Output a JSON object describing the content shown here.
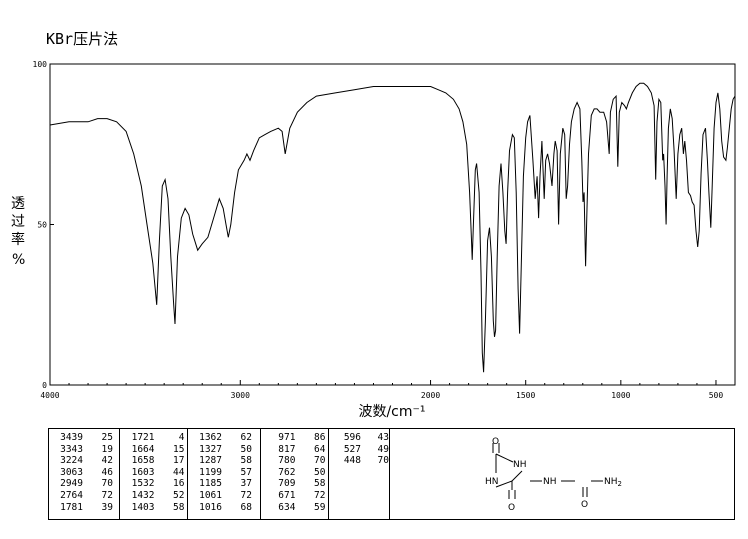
{
  "header": {
    "title": "KBr压片法"
  },
  "chart_data": {
    "type": "line",
    "title": "KBr压片法",
    "xlabel": "波数/cm⁻¹",
    "ylabel_chars": [
      "透",
      "过",
      "率"
    ],
    "ylabel_unit": "%",
    "xlim": [
      4000,
      400
    ],
    "ylim": [
      0,
      100
    ],
    "x_ticks": [
      "4000",
      "3000",
      "2000",
      "1500",
      "1000",
      "500"
    ],
    "x_tick_values": [
      4000,
      3000,
      2000,
      1500,
      1000,
      500
    ],
    "y_ticks": [
      "0",
      "50",
      "100"
    ],
    "y_tick_values": [
      0,
      50,
      100
    ],
    "grid": false,
    "series": [
      {
        "points": [
          [
            4000,
            81
          ],
          [
            3900,
            82
          ],
          [
            3800,
            82
          ],
          [
            3750,
            83
          ],
          [
            3700,
            83
          ],
          [
            3650,
            82
          ],
          [
            3600,
            79
          ],
          [
            3560,
            72
          ],
          [
            3520,
            62
          ],
          [
            3490,
            50
          ],
          [
            3460,
            38
          ],
          [
            3439,
            25
          ],
          [
            3425,
            45
          ],
          [
            3410,
            62
          ],
          [
            3395,
            64
          ],
          [
            3380,
            58
          ],
          [
            3365,
            40
          ],
          [
            3350,
            25
          ],
          [
            3343,
            19
          ],
          [
            3330,
            40
          ],
          [
            3310,
            52
          ],
          [
            3290,
            55
          ],
          [
            3270,
            53
          ],
          [
            3250,
            47
          ],
          [
            3224,
            42
          ],
          [
            3200,
            44
          ],
          [
            3170,
            46
          ],
          [
            3140,
            52
          ],
          [
            3110,
            58
          ],
          [
            3090,
            55
          ],
          [
            3075,
            50
          ],
          [
            3063,
            46
          ],
          [
            3050,
            50
          ],
          [
            3030,
            60
          ],
          [
            3010,
            67
          ],
          [
            2980,
            70
          ],
          [
            2965,
            72
          ],
          [
            2949,
            70
          ],
          [
            2930,
            73
          ],
          [
            2900,
            77
          ],
          [
            2870,
            78
          ],
          [
            2840,
            79
          ],
          [
            2800,
            80
          ],
          [
            2780,
            79
          ],
          [
            2764,
            72
          ],
          [
            2740,
            80
          ],
          [
            2700,
            85
          ],
          [
            2650,
            88
          ],
          [
            2600,
            90
          ],
          [
            2500,
            91
          ],
          [
            2400,
            92
          ],
          [
            2300,
            93
          ],
          [
            2200,
            93
          ],
          [
            2100,
            93
          ],
          [
            2000,
            93
          ],
          [
            1960,
            92
          ],
          [
            1920,
            91
          ],
          [
            1880,
            89
          ],
          [
            1850,
            86
          ],
          [
            1830,
            82
          ],
          [
            1810,
            75
          ],
          [
            1795,
            60
          ],
          [
            1785,
            45
          ],
          [
            1781,
            39
          ],
          [
            1775,
            50
          ],
          [
            1765,
            67
          ],
          [
            1758,
            69
          ],
          [
            1745,
            60
          ],
          [
            1735,
            35
          ],
          [
            1728,
            10
          ],
          [
            1721,
            4
          ],
          [
            1712,
            20
          ],
          [
            1700,
            45
          ],
          [
            1690,
            49
          ],
          [
            1680,
            40
          ],
          [
            1670,
            20
          ],
          [
            1664,
            15
          ],
          [
            1658,
            17
          ],
          [
            1650,
            40
          ],
          [
            1640,
            62
          ],
          [
            1630,
            69
          ],
          [
            1620,
            60
          ],
          [
            1610,
            48
          ],
          [
            1603,
            44
          ],
          [
            1595,
            60
          ],
          [
            1585,
            73
          ],
          [
            1570,
            78
          ],
          [
            1560,
            77
          ],
          [
            1550,
            60
          ],
          [
            1540,
            30
          ],
          [
            1532,
            16
          ],
          [
            1524,
            35
          ],
          [
            1512,
            65
          ],
          [
            1500,
            77
          ],
          [
            1490,
            82
          ],
          [
            1478,
            84
          ],
          [
            1462,
            70
          ],
          [
            1450,
            58
          ],
          [
            1440,
            65
          ],
          [
            1432,
            52
          ],
          [
            1425,
            65
          ],
          [
            1415,
            76
          ],
          [
            1403,
            58
          ],
          [
            1395,
            70
          ],
          [
            1385,
            72
          ],
          [
            1375,
            69
          ],
          [
            1362,
            62
          ],
          [
            1352,
            72
          ],
          [
            1345,
            76
          ],
          [
            1335,
            73
          ],
          [
            1327,
            50
          ],
          [
            1318,
            72
          ],
          [
            1305,
            80
          ],
          [
            1295,
            78
          ],
          [
            1287,
            58
          ],
          [
            1280,
            62
          ],
          [
            1270,
            75
          ],
          [
            1260,
            82
          ],
          [
            1245,
            86
          ],
          [
            1230,
            88
          ],
          [
            1215,
            86
          ],
          [
            1205,
            70
          ],
          [
            1199,
            57
          ],
          [
            1193,
            60
          ],
          [
            1185,
            37
          ],
          [
            1178,
            55
          ],
          [
            1170,
            72
          ],
          [
            1155,
            84
          ],
          [
            1140,
            86
          ],
          [
            1125,
            86
          ],
          [
            1110,
            85
          ],
          [
            1090,
            85
          ],
          [
            1075,
            82
          ],
          [
            1061,
            72
          ],
          [
            1055,
            85
          ],
          [
            1040,
            89
          ],
          [
            1025,
            90
          ],
          [
            1016,
            68
          ],
          [
            1008,
            85
          ],
          [
            995,
            88
          ],
          [
            980,
            87
          ],
          [
            971,
            86
          ],
          [
            960,
            88
          ],
          [
            940,
            91
          ],
          [
            920,
            93
          ],
          [
            900,
            94
          ],
          [
            880,
            94
          ],
          [
            860,
            93
          ],
          [
            840,
            91
          ],
          [
            825,
            87
          ],
          [
            817,
            64
          ],
          [
            810,
            82
          ],
          [
            800,
            89
          ],
          [
            790,
            88
          ],
          [
            782,
            74
          ],
          [
            780,
            70
          ],
          [
            775,
            72
          ],
          [
            768,
            62
          ],
          [
            762,
            50
          ],
          [
            757,
            65
          ],
          [
            750,
            80
          ],
          [
            740,
            86
          ],
          [
            730,
            83
          ],
          [
            720,
            73
          ],
          [
            709,
            58
          ],
          [
            700,
            72
          ],
          [
            690,
            78
          ],
          [
            680,
            80
          ],
          [
            671,
            72
          ],
          [
            664,
            76
          ],
          [
            655,
            70
          ],
          [
            645,
            60
          ],
          [
            634,
            59
          ],
          [
            625,
            57
          ],
          [
            615,
            56
          ],
          [
            605,
            48
          ],
          [
            596,
            43
          ],
          [
            588,
            48
          ],
          [
            578,
            66
          ],
          [
            568,
            78
          ],
          [
            555,
            80
          ],
          [
            545,
            70
          ],
          [
            537,
            60
          ],
          [
            527,
            49
          ],
          [
            520,
            62
          ],
          [
            510,
            80
          ],
          [
            500,
            88
          ],
          [
            490,
            91
          ],
          [
            480,
            86
          ],
          [
            470,
            76
          ],
          [
            460,
            71
          ],
          [
            448,
            70
          ],
          [
            440,
            74
          ],
          [
            430,
            80
          ],
          [
            420,
            86
          ],
          [
            410,
            89
          ],
          [
            400,
            90
          ]
        ]
      }
    ]
  },
  "peak_table": {
    "columns": [
      [
        [
          "3439",
          "25"
        ],
        [
          "3343",
          "19"
        ],
        [
          "3224",
          "42"
        ],
        [
          "3063",
          "46"
        ],
        [
          "2949",
          "70"
        ],
        [
          "2764",
          "72"
        ],
        [
          "1781",
          "39"
        ]
      ],
      [
        [
          "1721",
          "4"
        ],
        [
          "1664",
          "15"
        ],
        [
          "1658",
          "17"
        ],
        [
          "1603",
          "44"
        ],
        [
          "1532",
          "16"
        ],
        [
          "1432",
          "52"
        ],
        [
          "1403",
          "58"
        ]
      ],
      [
        [
          "1362",
          "62"
        ],
        [
          "1327",
          "50"
        ],
        [
          "1287",
          "58"
        ],
        [
          "1199",
          "57"
        ],
        [
          "1185",
          "37"
        ],
        [
          "1061",
          "72"
        ],
        [
          "1016",
          "68"
        ]
      ],
      [
        [
          "971",
          "86"
        ],
        [
          "817",
          "64"
        ],
        [
          "780",
          "70"
        ],
        [
          "762",
          "50"
        ],
        [
          "709",
          "58"
        ],
        [
          "671",
          "72"
        ],
        [
          "634",
          "59"
        ]
      ],
      [
        [
          "596",
          "43"
        ],
        [
          "527",
          "49"
        ],
        [
          "448",
          "70"
        ]
      ]
    ]
  },
  "structure": {
    "labels": {
      "o_top": "O",
      "nh_right": "NH",
      "hn_left": "HN",
      "o_bottom": "O",
      "nh_link": "NH",
      "o_urea": "O",
      "nh2": "NH",
      "nh2_sub": "2"
    }
  }
}
